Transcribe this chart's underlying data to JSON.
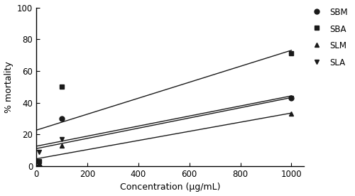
{
  "series": [
    {
      "label": "SBM",
      "x": [
        10,
        100,
        1000
      ],
      "y": [
        0,
        30,
        43
      ],
      "marker": "o",
      "color": "#1a1a1a"
    },
    {
      "label": "SBA",
      "x": [
        10,
        100,
        1000
      ],
      "y": [
        3,
        50,
        71
      ],
      "marker": "s",
      "color": "#1a1a1a"
    },
    {
      "label": "SLM",
      "x": [
        10,
        100,
        1000
      ],
      "y": [
        0,
        13,
        33
      ],
      "marker": "^",
      "color": "#1a1a1a"
    },
    {
      "label": "SLA",
      "x": [
        10,
        100,
        1000
      ],
      "y": [
        9,
        17,
        43
      ],
      "marker": "v",
      "color": "#1a1a1a"
    }
  ],
  "xlabel": "Concentration (μg/mL)",
  "ylabel": "% mortality",
  "xlim": [
    0,
    1050
  ],
  "ylim": [
    0,
    100
  ],
  "xticks": [
    0,
    200,
    400,
    600,
    800,
    1000
  ],
  "yticks": [
    0,
    20,
    40,
    60,
    80,
    100
  ],
  "background_color": "#ffffff",
  "line_color": "#1a1a1a",
  "marker_size": 5,
  "line_width": 1.0,
  "legend_fontsize": 8.5,
  "axis_fontsize": 9,
  "tick_fontsize": 8.5
}
